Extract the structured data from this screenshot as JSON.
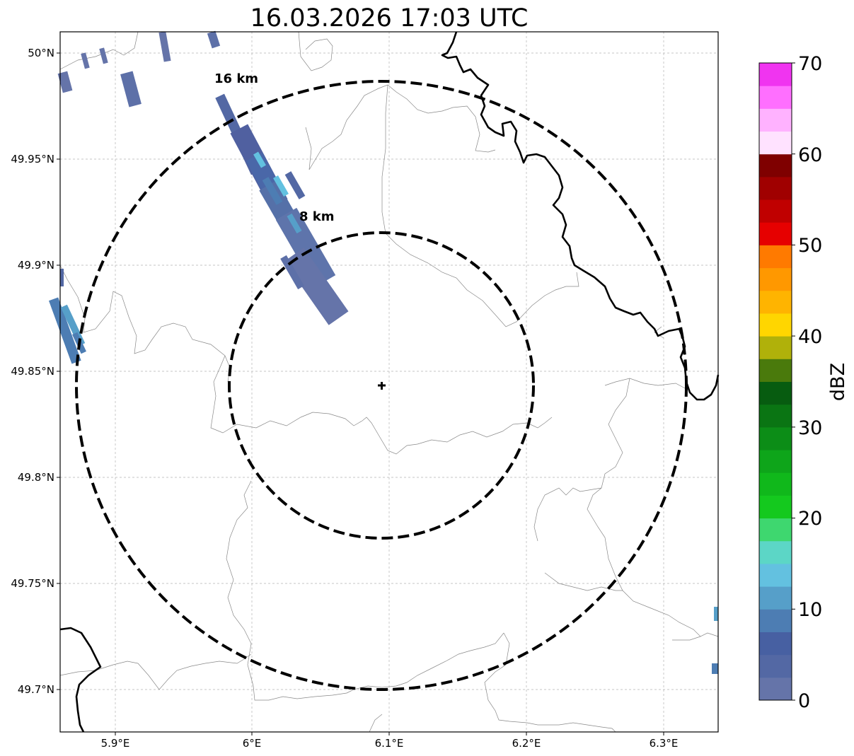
{
  "title": "16.03.2026 17:03 UTC",
  "map": {
    "projection": "PlateCarree",
    "lon_range": [
      5.86,
      6.34
    ],
    "lat_range": [
      49.68,
      50.01
    ],
    "x_ticks": [
      "5.9°E",
      "6°E",
      "6.1°E",
      "6.2°E",
      "6.3°E"
    ],
    "y_ticks": [
      "50°N",
      "49.95°N",
      "49.9°N",
      "49.85°N",
      "49.8°N",
      "49.75°N",
      "49.7°N"
    ],
    "grid": true,
    "radar_site": {
      "lon": 6.095,
      "lat": 49.843,
      "marker": "plus"
    },
    "rings": [
      {
        "label": "8 km",
        "radius_km": 8
      },
      {
        "label": "16 km",
        "radius_km": 16
      }
    ],
    "colors": {
      "border_line": "#000000",
      "admin_line": "#888888",
      "grid_line": "#b4b4b4"
    }
  },
  "colorbar": {
    "label": "dBZ",
    "ticks": [
      "0",
      "10",
      "20",
      "30",
      "40",
      "50",
      "60",
      "70"
    ],
    "range": [
      0,
      70
    ],
    "step": 2.5,
    "colors": [
      "#6574a9",
      "#5368a4",
      "#4760a2",
      "#4d7db3",
      "#569fc9",
      "#63c1e0",
      "#5cd6c6",
      "#3ed76f",
      "#14c91e",
      "#10b81b",
      "#0ea51a",
      "#0c8d17",
      "#0a7513",
      "#075c10",
      "#4a7a0c",
      "#b0b10a",
      "#ffd600",
      "#ffb400",
      "#ff9800",
      "#ff7a00",
      "#e60000",
      "#c00000",
      "#a00000",
      "#7f0000",
      "#ffe2ff",
      "#ffb2ff",
      "#ff6fff",
      "#f034f0"
    ]
  },
  "chart_data": {
    "type": "heatmap",
    "title": "16.03.2026 17:03 UTC",
    "variable": "reflectivity",
    "unit": "dBZ",
    "value_range": [
      0,
      70
    ],
    "echoes": [
      {
        "region": "NNW band from 49.99°N 5.99°E to 49.88°N 6.06°E",
        "dbz_range": [
          0,
          15
        ]
      },
      {
        "region": "western edge near 49.86°N 5.87°E",
        "dbz_range": [
          0,
          12
        ]
      },
      {
        "region": "northwest scattered near 49.98°N 5.90°E",
        "dbz_range": [
          0,
          5
        ]
      },
      {
        "region": "eastern edge near 49.72°N 6.33°E",
        "dbz_range": [
          0,
          10
        ]
      }
    ]
  }
}
